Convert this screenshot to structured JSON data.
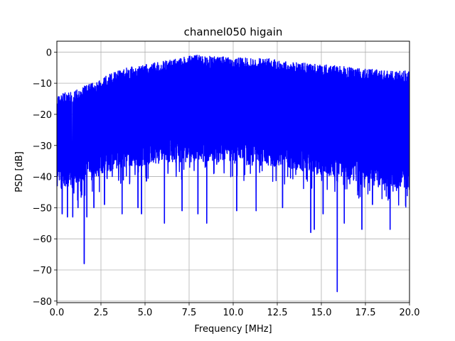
{
  "chart_data": {
    "type": "line",
    "title": "channel050 higain",
    "xlabel": "Frequency [MHz]",
    "ylabel": "PSD [dB]",
    "xlim": [
      0,
      20
    ],
    "ylim": [
      -80.5,
      3.5
    ],
    "x_ticks": [
      "0.0",
      "2.5",
      "5.0",
      "7.5",
      "10.0",
      "12.5",
      "15.0",
      "17.5",
      "20.0"
    ],
    "x_tick_values": [
      0,
      2.5,
      5,
      7.5,
      10,
      12.5,
      15,
      17.5,
      20
    ],
    "y_ticks": [
      "0",
      "−10",
      "−20",
      "−30",
      "−40",
      "−50",
      "−60",
      "−70",
      "−80"
    ],
    "y_tick_values": [
      0,
      -10,
      -20,
      -30,
      -40,
      -50,
      -60,
      -70,
      -80
    ],
    "grid": true,
    "series": [
      {
        "color": "#0000ff",
        "envelope": {
          "x": [
            0,
            0.5,
            1,
            1.5,
            2,
            2.5,
            3,
            3.5,
            4,
            5,
            6,
            7,
            7.5,
            8,
            9,
            10,
            11,
            12,
            13,
            14,
            15,
            16,
            17,
            18,
            19,
            20
          ],
          "upper": [
            -14,
            -13,
            -12,
            -11,
            -10,
            -8.5,
            -7,
            -6,
            -5,
            -4,
            -3,
            -2,
            -1,
            -1,
            -1.5,
            -1.5,
            -2,
            -2,
            -3,
            -3.5,
            -4,
            -4.5,
            -5,
            -5.5,
            -6,
            -6
          ],
          "lower": [
            -42,
            -41,
            -40,
            -39,
            -38,
            -37,
            -36,
            -35,
            -35,
            -34,
            -33,
            -33,
            -33,
            -33,
            -33,
            -33,
            -34,
            -34,
            -35,
            -36,
            -37,
            -38,
            -39,
            -40,
            -41,
            -42
          ]
        },
        "dips": [
          {
            "x": 0.3,
            "y": -52
          },
          {
            "x": 0.6,
            "y": -53
          },
          {
            "x": 0.9,
            "y": -53
          },
          {
            "x": 1.2,
            "y": -50
          },
          {
            "x": 1.55,
            "y": -68
          },
          {
            "x": 1.7,
            "y": -53
          },
          {
            "x": 2.1,
            "y": -50
          },
          {
            "x": 2.7,
            "y": -49
          },
          {
            "x": 3.7,
            "y": -52
          },
          {
            "x": 4.6,
            "y": -50
          },
          {
            "x": 4.8,
            "y": -52
          },
          {
            "x": 6.1,
            "y": -55
          },
          {
            "x": 7.1,
            "y": -51
          },
          {
            "x": 8.0,
            "y": -52
          },
          {
            "x": 8.5,
            "y": -55
          },
          {
            "x": 10.2,
            "y": -51
          },
          {
            "x": 11.3,
            "y": -51
          },
          {
            "x": 12.8,
            "y": -50
          },
          {
            "x": 14.4,
            "y": -58
          },
          {
            "x": 14.6,
            "y": -57
          },
          {
            "x": 15.1,
            "y": -52
          },
          {
            "x": 15.9,
            "y": -77
          },
          {
            "x": 16.3,
            "y": -55
          },
          {
            "x": 17.3,
            "y": -57
          },
          {
            "x": 17.9,
            "y": -49
          },
          {
            "x": 18.9,
            "y": -57
          }
        ]
      }
    ]
  }
}
